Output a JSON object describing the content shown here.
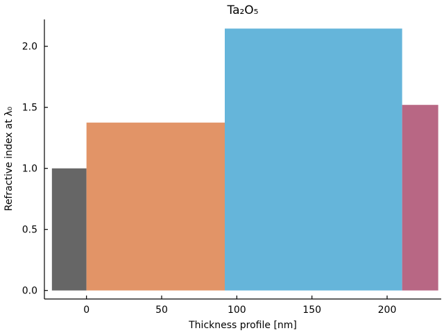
{
  "chart_data": {
    "type": "bar",
    "title": "Ta₂O₅",
    "xlabel": "Thickness profile [nm]",
    "ylabel": "Refractive index at λ₀",
    "xlim": [
      -28,
      236
    ],
    "ylim": [
      -0.07,
      2.22
    ],
    "grid": false,
    "xticks": [
      0,
      50,
      100,
      150,
      200
    ],
    "yticks": [
      0.0,
      0.5,
      1.0,
      1.5,
      2.0
    ],
    "xtick_labels": [
      "0",
      "50",
      "100",
      "150",
      "200"
    ],
    "ytick_labels": [
      "0.0",
      "0.5",
      "1.0",
      "1.5",
      "2.0"
    ],
    "layers": [
      {
        "x_start": -23,
        "x_end": 0,
        "value": 1.0,
        "color": "#666666"
      },
      {
        "x_start": 0,
        "x_end": 92,
        "value": 1.375,
        "color": "#e29467"
      },
      {
        "x_start": 92,
        "x_end": 210,
        "value": 2.145,
        "color": "#65b5da"
      },
      {
        "x_start": 210,
        "x_end": 234,
        "value": 1.52,
        "color": "#b86784"
      }
    ]
  }
}
